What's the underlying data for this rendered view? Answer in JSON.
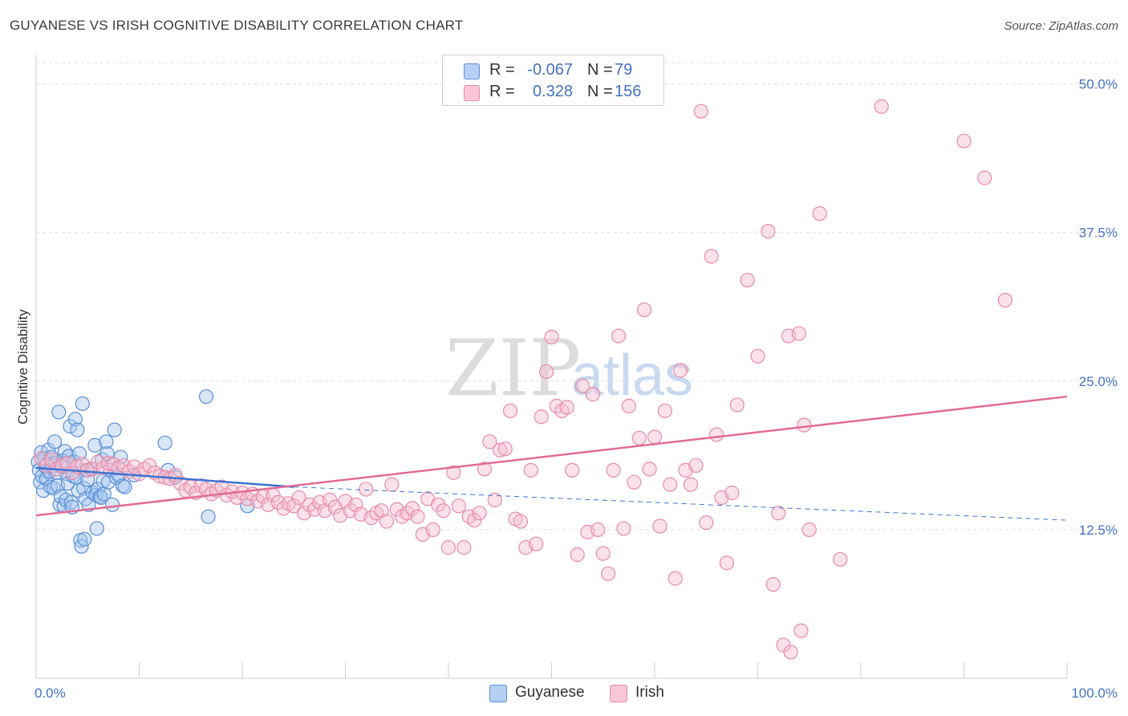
{
  "title": "GUYANESE VS IRISH COGNITIVE DISABILITY CORRELATION CHART",
  "source": "Source: ZipAtlas.com",
  "watermark": {
    "zip": "ZIP",
    "atlas": "atlas"
  },
  "legend": {
    "rows": [
      {
        "r_label": "R =",
        "r_value": "-0.067",
        "n_label": "N =",
        "n_value": "79"
      },
      {
        "r_label": "R =",
        "r_value": "0.328",
        "n_label": "N =",
        "n_value": "156"
      }
    ]
  },
  "bottom_legend": [
    "Guyanese",
    "Irish"
  ],
  "chart_data": {
    "type": "scatter",
    "ylabel": "Cognitive Disability",
    "xlim": [
      0,
      100
    ],
    "ylim": [
      0,
      52
    ],
    "x_tick_labels": [
      "0.0%",
      "100.0%"
    ],
    "y_ticks": [
      12.5,
      25.0,
      37.5,
      50.0
    ],
    "y_tick_labels": [
      "12.5%",
      "25.0%",
      "37.5%",
      "50.0%"
    ],
    "grid": true,
    "colors": {
      "guyanese_fill": "#a8c8f0",
      "guyanese_stroke": "#5b8fd6",
      "guyanese_line": "#3a74d0",
      "irish_fill": "#f7bfd0",
      "irish_stroke": "#e88aa8",
      "irish_line": "#e06c94",
      "axis_text": "#4472c4",
      "grid": "#dddddd"
    },
    "series": [
      {
        "name": "Guyanese",
        "trend": {
          "x": [
            0,
            25
          ],
          "y": [
            17.7,
            16.1
          ],
          "dashed_to": [
            100,
            13.3
          ]
        },
        "points": [
          [
            0.2,
            18.2
          ],
          [
            0.3,
            17.5
          ],
          [
            0.4,
            16.5
          ],
          [
            0.5,
            19.0
          ],
          [
            0.6,
            17.0
          ],
          [
            0.7,
            15.8
          ],
          [
            0.8,
            18.5
          ],
          [
            0.9,
            17.8
          ],
          [
            1.0,
            16.8
          ],
          [
            1.1,
            18.0
          ],
          [
            1.2,
            19.2
          ],
          [
            1.3,
            17.4
          ],
          [
            1.4,
            16.1
          ],
          [
            1.5,
            18.6
          ],
          [
            1.6,
            17.9
          ],
          [
            1.7,
            16.0
          ],
          [
            1.8,
            19.9
          ],
          [
            1.9,
            18.1
          ],
          [
            2.0,
            17.3
          ],
          [
            2.1,
            16.2
          ],
          [
            2.2,
            22.4
          ],
          [
            2.3,
            14.6
          ],
          [
            2.4,
            15.3
          ],
          [
            2.5,
            17.8
          ],
          [
            2.6,
            18.3
          ],
          [
            2.7,
            14.5
          ],
          [
            2.8,
            19.1
          ],
          [
            2.9,
            15.0
          ],
          [
            3.0,
            17.2
          ],
          [
            3.1,
            16.4
          ],
          [
            3.2,
            18.7
          ],
          [
            3.3,
            21.2
          ],
          [
            3.4,
            14.8
          ],
          [
            3.5,
            14.4
          ],
          [
            3.6,
            17.0
          ],
          [
            3.7,
            18.2
          ],
          [
            3.8,
            21.8
          ],
          [
            3.9,
            16.9
          ],
          [
            4.0,
            20.9
          ],
          [
            4.1,
            15.8
          ],
          [
            4.2,
            18.9
          ],
          [
            4.3,
            11.6
          ],
          [
            4.4,
            11.1
          ],
          [
            4.5,
            23.1
          ],
          [
            4.6,
            16.0
          ],
          [
            4.7,
            11.7
          ],
          [
            4.8,
            15.1
          ],
          [
            4.9,
            17.5
          ],
          [
            5.0,
            16.7
          ],
          [
            5.1,
            14.6
          ],
          [
            5.3,
            17.6
          ],
          [
            5.5,
            15.6
          ],
          [
            5.7,
            19.6
          ],
          [
            5.8,
            15.4
          ],
          [
            5.9,
            12.6
          ],
          [
            6.0,
            15.9
          ],
          [
            6.2,
            15.3
          ],
          [
            6.3,
            15.2
          ],
          [
            6.4,
            18.4
          ],
          [
            6.5,
            16.6
          ],
          [
            6.6,
            15.5
          ],
          [
            6.8,
            19.9
          ],
          [
            6.9,
            18.9
          ],
          [
            7.0,
            16.5
          ],
          [
            7.2,
            17.5
          ],
          [
            7.4,
            14.6
          ],
          [
            7.6,
            20.9
          ],
          [
            7.8,
            16.9
          ],
          [
            8.0,
            17.1
          ],
          [
            8.2,
            18.6
          ],
          [
            8.4,
            16.2
          ],
          [
            8.6,
            16.1
          ],
          [
            9.5,
            17.1
          ],
          [
            12.5,
            19.8
          ],
          [
            12.8,
            17.5
          ],
          [
            13.5,
            16.9
          ],
          [
            16.5,
            23.7
          ],
          [
            16.7,
            13.6
          ],
          [
            20.5,
            14.5
          ]
        ]
      },
      {
        "name": "Irish",
        "trend": {
          "x": [
            0,
            100
          ],
          "y": [
            13.7,
            23.7
          ]
        },
        "points": [
          [
            0.5,
            18.5
          ],
          [
            1.0,
            17.9
          ],
          [
            1.5,
            18.4
          ],
          [
            2.0,
            17.6
          ],
          [
            2.5,
            17.9
          ],
          [
            3.0,
            18.1
          ],
          [
            3.5,
            17.3
          ],
          [
            4.0,
            17.8
          ],
          [
            4.5,
            18.0
          ],
          [
            5.0,
            17.5
          ],
          [
            5.5,
            17.6
          ],
          [
            6.0,
            18.2
          ],
          [
            6.5,
            17.7
          ],
          [
            7.0,
            18.1
          ],
          [
            7.5,
            18.0
          ],
          [
            8.0,
            17.7
          ],
          [
            8.5,
            17.9
          ],
          [
            9.0,
            17.4
          ],
          [
            9.5,
            17.8
          ],
          [
            10.0,
            17.2
          ],
          [
            10.5,
            17.6
          ],
          [
            11.0,
            17.9
          ],
          [
            11.5,
            17.3
          ],
          [
            12.0,
            17.0
          ],
          [
            12.5,
            16.9
          ],
          [
            13.0,
            16.8
          ],
          [
            13.5,
            17.1
          ],
          [
            14.0,
            16.4
          ],
          [
            14.5,
            15.8
          ],
          [
            15.0,
            16.1
          ],
          [
            15.5,
            15.6
          ],
          [
            16.0,
            16.2
          ],
          [
            16.5,
            15.9
          ],
          [
            17.0,
            15.5
          ],
          [
            17.5,
            15.8
          ],
          [
            18.0,
            16.1
          ],
          [
            18.5,
            15.4
          ],
          [
            19.0,
            15.7
          ],
          [
            19.5,
            15.2
          ],
          [
            20.0,
            15.6
          ],
          [
            20.5,
            15.1
          ],
          [
            21.0,
            15.5
          ],
          [
            21.5,
            14.9
          ],
          [
            22.0,
            15.3
          ],
          [
            22.5,
            14.6
          ],
          [
            23.0,
            15.4
          ],
          [
            23.5,
            14.8
          ],
          [
            24.0,
            14.3
          ],
          [
            24.5,
            14.7
          ],
          [
            25.0,
            14.5
          ],
          [
            25.5,
            15.2
          ],
          [
            26.0,
            13.9
          ],
          [
            26.5,
            14.6
          ],
          [
            27.0,
            14.2
          ],
          [
            27.5,
            14.8
          ],
          [
            28.0,
            14.1
          ],
          [
            28.5,
            15.0
          ],
          [
            29.0,
            14.4
          ],
          [
            29.5,
            13.7
          ],
          [
            30.0,
            14.9
          ],
          [
            30.5,
            14.1
          ],
          [
            31.0,
            14.6
          ],
          [
            31.5,
            13.8
          ],
          [
            32.0,
            15.9
          ],
          [
            32.5,
            13.5
          ],
          [
            33.0,
            13.9
          ],
          [
            33.5,
            14.1
          ],
          [
            34.0,
            13.2
          ],
          [
            34.5,
            16.3
          ],
          [
            35.0,
            14.2
          ],
          [
            35.5,
            13.6
          ],
          [
            36.0,
            13.9
          ],
          [
            36.5,
            14.3
          ],
          [
            37.0,
            13.6
          ],
          [
            37.5,
            12.1
          ],
          [
            38.0,
            15.1
          ],
          [
            38.5,
            12.5
          ],
          [
            39.0,
            14.6
          ],
          [
            39.5,
            14.1
          ],
          [
            40.0,
            11.0
          ],
          [
            40.5,
            17.3
          ],
          [
            41.0,
            14.5
          ],
          [
            41.5,
            11.0
          ],
          [
            42.0,
            13.6
          ],
          [
            42.5,
            13.3
          ],
          [
            43.0,
            13.9
          ],
          [
            43.5,
            17.6
          ],
          [
            44.0,
            19.9
          ],
          [
            44.5,
            15.0
          ],
          [
            45.0,
            19.2
          ],
          [
            45.5,
            19.3
          ],
          [
            46.0,
            22.5
          ],
          [
            46.5,
            13.4
          ],
          [
            47.0,
            13.2
          ],
          [
            47.5,
            11.0
          ],
          [
            48.0,
            17.5
          ],
          [
            48.5,
            11.3
          ],
          [
            49.0,
            22.0
          ],
          [
            49.5,
            25.8
          ],
          [
            50.0,
            28.7
          ],
          [
            50.5,
            22.9
          ],
          [
            51.0,
            22.5
          ],
          [
            51.5,
            22.8
          ],
          [
            52.0,
            17.5
          ],
          [
            52.5,
            10.4
          ],
          [
            53.0,
            24.6
          ],
          [
            53.5,
            12.3
          ],
          [
            54.0,
            23.9
          ],
          [
            54.5,
            12.5
          ],
          [
            55.0,
            10.5
          ],
          [
            55.5,
            8.8
          ],
          [
            56.0,
            17.5
          ],
          [
            56.5,
            28.8
          ],
          [
            57.0,
            12.6
          ],
          [
            57.5,
            22.9
          ],
          [
            58.0,
            16.5
          ],
          [
            58.5,
            20.2
          ],
          [
            59.0,
            31.0
          ],
          [
            59.5,
            17.6
          ],
          [
            60.0,
            20.3
          ],
          [
            60.5,
            12.8
          ],
          [
            61.0,
            22.5
          ],
          [
            61.5,
            16.3
          ],
          [
            62.0,
            8.4
          ],
          [
            62.5,
            25.9
          ],
          [
            63.0,
            17.5
          ],
          [
            63.5,
            16.3
          ],
          [
            64.0,
            17.9
          ],
          [
            64.5,
            47.7
          ],
          [
            65.0,
            13.1
          ],
          [
            65.5,
            35.5
          ],
          [
            66.0,
            20.5
          ],
          [
            66.5,
            15.2
          ],
          [
            67.0,
            9.7
          ],
          [
            67.5,
            15.6
          ],
          [
            68.0,
            23.0
          ],
          [
            69.0,
            33.5
          ],
          [
            70.0,
            27.1
          ],
          [
            71.0,
            37.6
          ],
          [
            72.0,
            13.9
          ],
          [
            73.0,
            28.8
          ],
          [
            74.0,
            29.0
          ],
          [
            74.5,
            21.3
          ],
          [
            75.0,
            12.5
          ],
          [
            76.0,
            39.1
          ],
          [
            78.0,
            10.0
          ],
          [
            82.0,
            48.1
          ],
          [
            90.0,
            45.2
          ],
          [
            92.0,
            42.1
          ],
          [
            94.0,
            31.8
          ],
          [
            71.5,
            7.9
          ],
          [
            72.5,
            2.8
          ],
          [
            73.2,
            2.2
          ],
          [
            74.2,
            4.0
          ]
        ]
      }
    ]
  }
}
